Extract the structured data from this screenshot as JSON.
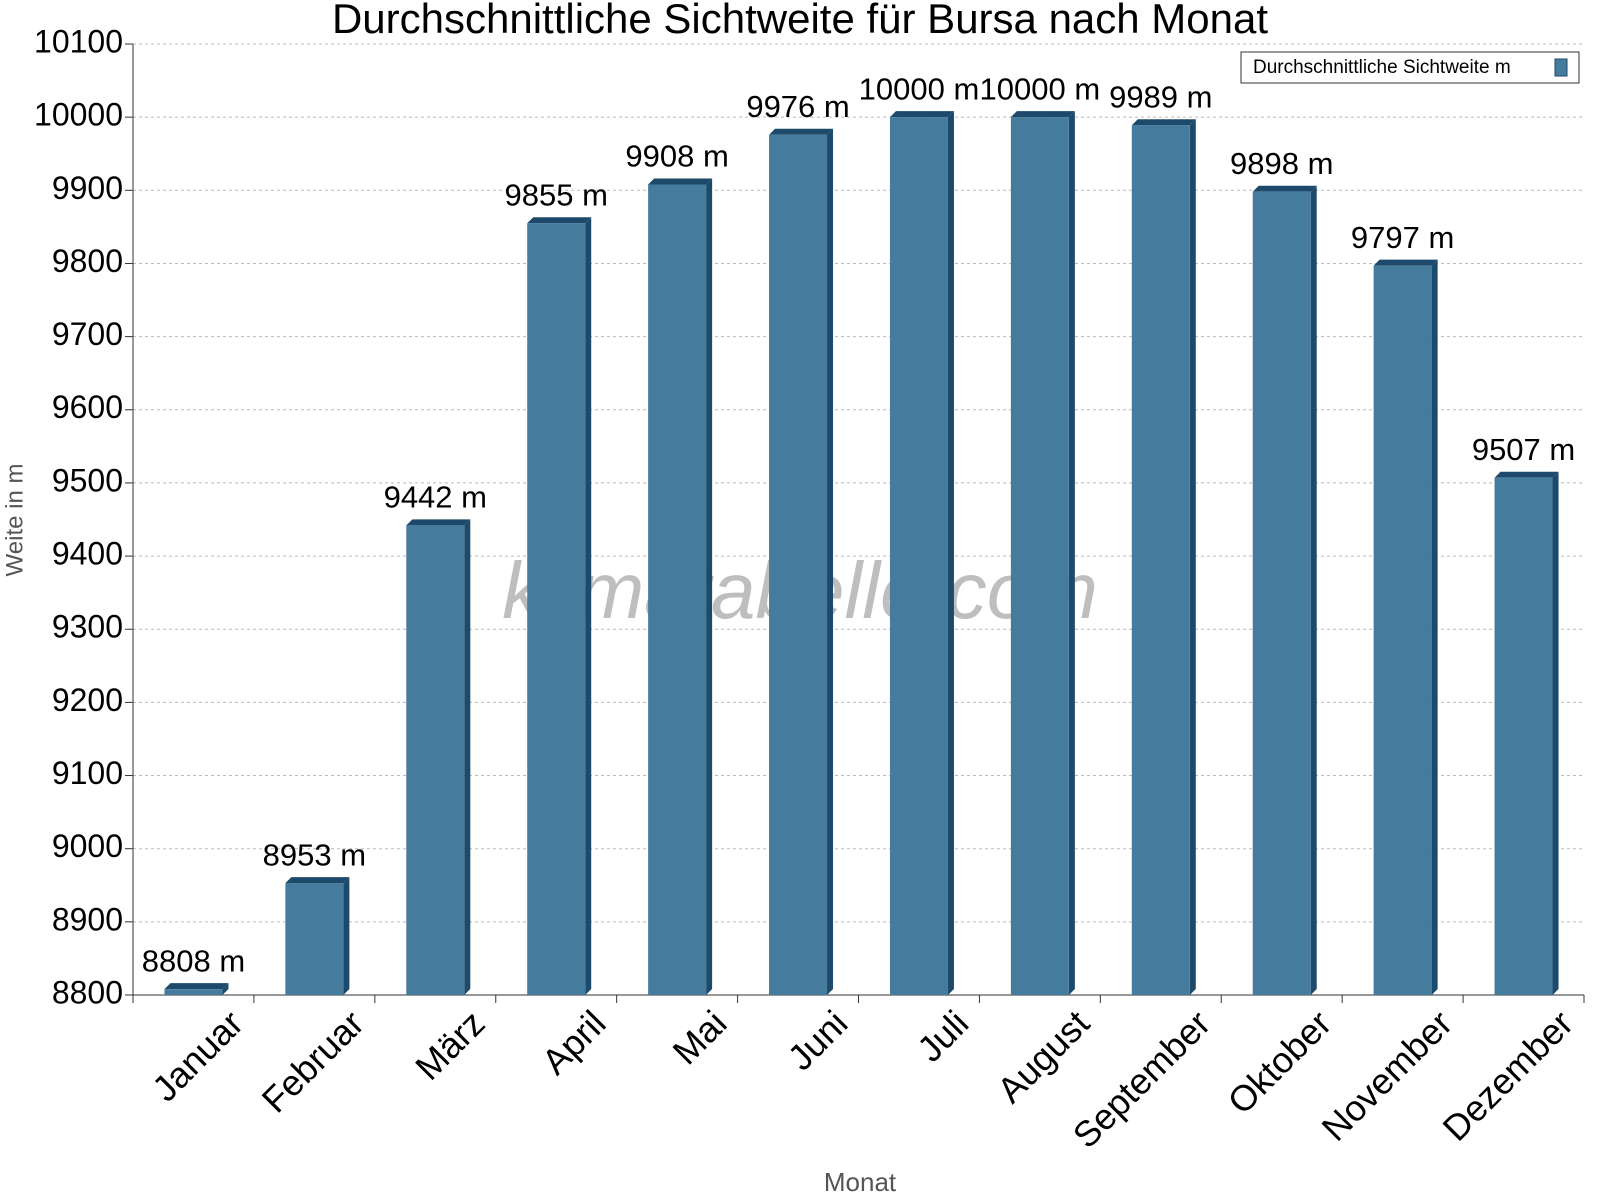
{
  "chart_data": {
    "type": "bar",
    "title": "Durchschnittliche Sichtweite für Bursa nach Monat",
    "x_label": "Monat",
    "y_label": "Weite in m",
    "watermark": "klimatabelle.com",
    "categories": [
      "Januar",
      "Februar",
      "März",
      "April",
      "Mai",
      "Juni",
      "Juli",
      "August",
      "September",
      "Oktober",
      "November",
      "Dezember"
    ],
    "series": [
      {
        "name": "Durchschnittliche Sichtweite m",
        "color": "#457b9d",
        "values": [
          8808,
          8953,
          9442,
          9855,
          9908,
          9976,
          10000,
          10000,
          9989,
          9898,
          9797,
          9507
        ],
        "value_labels": [
          "8808 m",
          "8953 m",
          "9442 m",
          "9855 m",
          "9908 m",
          "9976 m",
          "10000 m",
          "10000 m",
          "9989 m",
          "9898 m",
          "9797 m",
          "9507 m"
        ]
      }
    ],
    "ylim": [
      8800,
      10100
    ],
    "yticks": [
      8800,
      8900,
      9000,
      9100,
      9200,
      9300,
      9400,
      9500,
      9600,
      9700,
      9800,
      9900,
      10000,
      10100
    ],
    "grid": true,
    "legend": "upper-right"
  }
}
